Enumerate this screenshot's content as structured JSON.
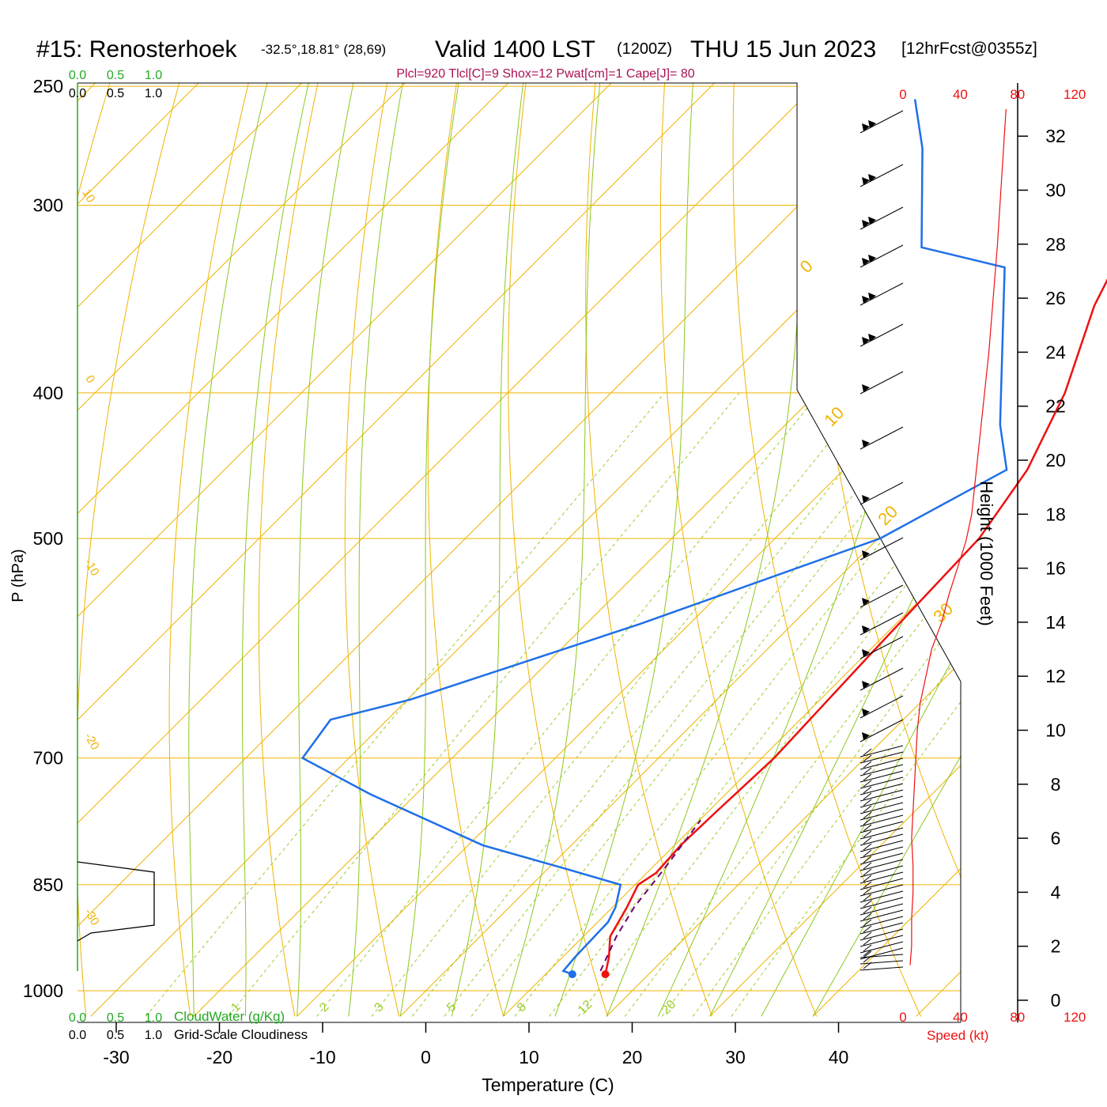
{
  "title": {
    "station": "#15: Renosterhoek",
    "coords": "-32.5°,18.81° (28,69)",
    "valid": "Valid 1400 LST",
    "zulu": "(1200Z)",
    "date": "THU 15 Jun 2023",
    "forecast": "[12hrFcst@0355z]"
  },
  "subtitle": "Plcl=920 Tlcl[C]=9 Shox=12 Pwat[cm]=1 Cape[J]= 80",
  "colors": {
    "temperature": "#ee1111",
    "dewpoint": "#1e6fe8",
    "parcel": "#6b006b",
    "grid": "#f0b400",
    "moist_adiabat": "#8cc81e",
    "mixing_ratio": "#9ccc2a",
    "cloudwater": "#22aa22",
    "speed": "#ee1111",
    "subtitle": "#aa1155"
  },
  "cloud_scale": {
    "cloudwater_label": "CloudWater (g/Kg)",
    "cloudiness_label": "Grid-Scale Cloudiness",
    "ticks": [
      "0.0",
      "0.5",
      "1.0"
    ]
  },
  "speed_scale": {
    "ticks": [
      "0",
      "40",
      "80",
      "120"
    ],
    "label": "Speed (kt)"
  },
  "chart_data": {
    "type": "line",
    "subtype": "skew-T log-P sounding",
    "xlabel": "Temperature (C)",
    "ylabel": "P (hPa)",
    "y2label": "Height (1000 Feet)",
    "xlim": [
      -33,
      45
    ],
    "ylim": [
      1030,
      250
    ],
    "yscale": "log",
    "x_ticks": [
      -30,
      -20,
      -10,
      0,
      10,
      20,
      30,
      40
    ],
    "y_ticks": [
      250,
      300,
      400,
      500,
      700,
      850,
      1000
    ],
    "height_ticks": [
      0,
      2,
      4,
      6,
      8,
      10,
      12,
      14,
      16,
      18,
      20,
      22,
      24,
      26,
      28,
      30,
      32
    ],
    "isotherm_labels": [
      "10",
      "0",
      "-10",
      "-20",
      "-30",
      "0",
      "10",
      "20",
      "30"
    ],
    "mixing_ratio_labels": [
      "1",
      "2",
      "3",
      "5",
      "8",
      "12",
      "20"
    ],
    "series": [
      {
        "name": "Temperature",
        "temp_c": [
          15.8,
          14.5,
          12.6,
          11.4,
          10.3,
          10.9,
          10.6,
          10.8,
          11.2,
          10.5,
          9.8,
          7.8,
          4.0,
          -1.6,
          -6.4,
          -11.6
        ],
        "pressure_hpa": [
          975,
          950,
          920,
          880,
          850,
          835,
          800,
          760,
          700,
          600,
          500,
          450,
          400,
          350,
          300,
          255
        ]
      },
      {
        "name": "Dewpoint",
        "temp_c": [
          12.6,
          11.4,
          11.2,
          11.0,
          10.3,
          8.6,
          1.9,
          -8.6,
          -24.4,
          -34.5,
          -35.5,
          -29.7,
          -14.8,
          0.2,
          5.8,
          0.8,
          -14.0,
          -24.0,
          -33.5,
          -39.0
        ],
        "pressure_hpa": [
          975,
          970,
          950,
          900,
          880,
          850,
          830,
          800,
          740,
          700,
          660,
          640,
          570,
          500,
          450,
          420,
          330,
          320,
          275,
          255
        ]
      },
      {
        "name": "Parcel",
        "temp_c": [
          15.0,
          13.2,
          12.1,
          11.3,
          10.1
        ],
        "pressure_hpa": [
          970,
          920,
          880,
          830,
          770
        ]
      },
      {
        "name": "Wind speed",
        "speed_kt": [
          5,
          6,
          6,
          7,
          7,
          6,
          8,
          10,
          12,
          16,
          20,
          27,
          32,
          38,
          44,
          48,
          52,
          60,
          66,
          72
        ],
        "height_kft": [
          1.3,
          2,
          3,
          4,
          5,
          6,
          8,
          10,
          11,
          12,
          13,
          14,
          15,
          16,
          17,
          18,
          20,
          24,
          28,
          33
        ]
      }
    ]
  }
}
